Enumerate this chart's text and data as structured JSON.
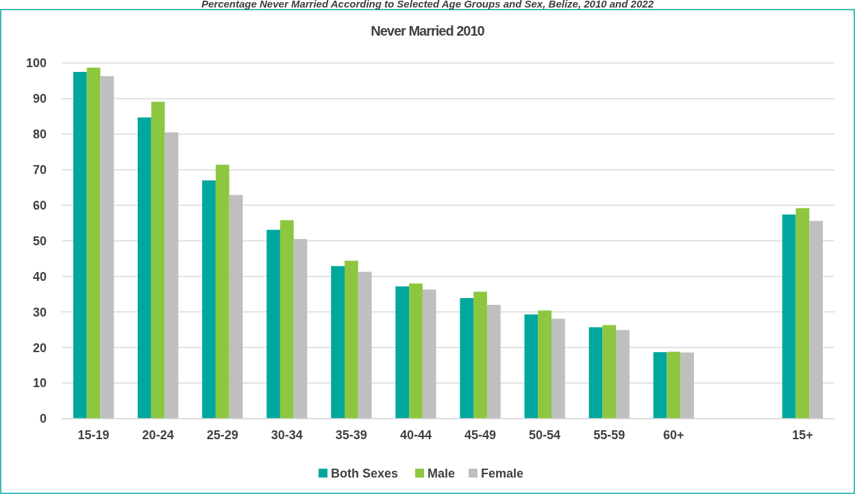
{
  "chart_data": {
    "type": "bar",
    "title": "Never Married 2010",
    "annotations": [
      "Percentage Never Married According to Selected Age Groups and Sex, Belize, 2010 and 2022"
    ],
    "categories": [
      "15-19",
      "20-24",
      "25-29",
      "30-34",
      "35-39",
      "40-44",
      "45-49",
      "50-54",
      "55-59",
      "60+",
      null,
      "15+"
    ],
    "series": [
      {
        "name": "Both Sexes",
        "color": "#00a79d",
        "values": [
          97.5,
          84.7,
          67.0,
          53.1,
          42.9,
          37.2,
          33.9,
          29.3,
          25.7,
          18.7,
          null,
          57.4
        ]
      },
      {
        "name": "Male",
        "color": "#8dc63f",
        "values": [
          98.7,
          89.1,
          71.4,
          55.8,
          44.4,
          38.0,
          35.7,
          30.4,
          26.3,
          18.8,
          null,
          59.2
        ]
      },
      {
        "name": "Female",
        "color": "#bfbfbf",
        "values": [
          96.3,
          80.5,
          62.9,
          50.5,
          41.3,
          36.3,
          32.0,
          28.1,
          24.9,
          18.6,
          null,
          55.6
        ]
      }
    ],
    "ylim": [
      0,
      100
    ],
    "yticks": [
      0,
      10,
      20,
      30,
      40,
      50,
      60,
      70,
      80,
      90,
      100
    ],
    "grid": "y",
    "legend": "bottom"
  }
}
